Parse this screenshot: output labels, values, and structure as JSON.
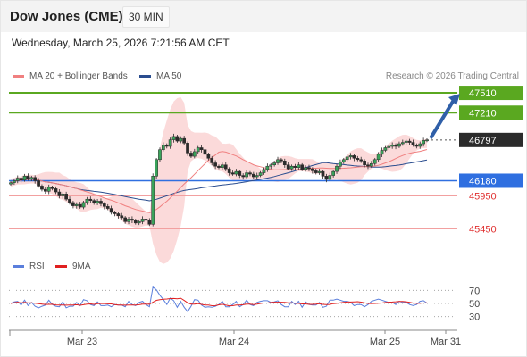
{
  "header": {
    "title": "Dow Jones (CME)",
    "timeframe_button": "30 MIN"
  },
  "subtitle": "Wednesday, March 25, 2026 7:21:56 AM CET",
  "legend": {
    "ma20_label": "MA 20 + Bollinger Bands",
    "ma50_label": "MA 50",
    "ma20_color": "#f08080",
    "ma50_color": "#2a4d8f"
  },
  "credit": "Research © 2026 Trading Central",
  "rsi_legend": {
    "rsi_label": "RSI",
    "ma_label": "9MA",
    "rsi_color": "#5b7fdc",
    "ma_color": "#e02020"
  },
  "chart_data": {
    "type": "candlestick",
    "price_axis": {
      "min": 45200,
      "max": 47700
    },
    "levels": [
      {
        "value": 47510,
        "label": "47510",
        "kind": "target",
        "color": "#5aa820"
      },
      {
        "value": 47210,
        "label": "47210",
        "kind": "target",
        "color": "#5aa820"
      },
      {
        "value": 46797,
        "label": "46797",
        "kind": "last",
        "color": "#2b2b2b"
      },
      {
        "value": 46180,
        "label": "46180",
        "kind": "pivot",
        "color": "#2f6fe0"
      },
      {
        "value": 45950,
        "label": "45950",
        "kind": "support",
        "color": "#e03030"
      },
      {
        "value": 45450,
        "label": "45450",
        "kind": "support",
        "color": "#e03030"
      }
    ],
    "candles_close": [
      46150,
      46180,
      46220,
      46190,
      46250,
      46210,
      46230,
      46180,
      46100,
      46050,
      46020,
      46080,
      46060,
      46010,
      45950,
      45980,
      45900,
      45850,
      45800,
      45820,
      45780,
      45850,
      45900,
      45880,
      45840,
      45870,
      45830,
      45790,
      45760,
      45700,
      45680,
      45650,
      45620,
      45560,
      45600,
      45580,
      45540,
      45560,
      45600,
      45580,
      45520,
      46250,
      46500,
      46650,
      46720,
      46700,
      46800,
      46850,
      46780,
      46820,
      46750,
      46600,
      46550,
      46620,
      46680,
      46650,
      46580,
      46520,
      46450,
      46400,
      46380,
      46420,
      46360,
      46300,
      46280,
      46320,
      46260,
      46240,
      46300,
      46280,
      46240,
      46260,
      46300,
      46350,
      46400,
      46420,
      46450,
      46500,
      46480,
      46420,
      46360,
      46400,
      46380,
      46420,
      46350,
      46380,
      46360,
      46330,
      46300,
      46320,
      46250,
      46200,
      46260,
      46320,
      46400,
      46460,
      46500,
      46540,
      46560,
      46520,
      46500,
      46480,
      46420,
      46400,
      46440,
      46500,
      46580,
      46640,
      46680,
      46700,
      46720,
      46700,
      46740,
      46760,
      46780,
      46760,
      46720,
      46700,
      46740,
      46790,
      46797
    ],
    "ma20_start": 46150,
    "ma20_end": 46700,
    "ma50_start": 46400,
    "ma50_end": 46560,
    "projection": {
      "from": 46797,
      "to": 47510
    },
    "x_ticks": [
      "Mar 23",
      "Mar 24",
      "Mar 25",
      "Mar 31"
    ],
    "rsi": {
      "y_ticks": [
        70,
        50,
        30
      ],
      "ylim": [
        20,
        80
      ],
      "rsi_start": 45,
      "rsi_end": 58
    }
  }
}
